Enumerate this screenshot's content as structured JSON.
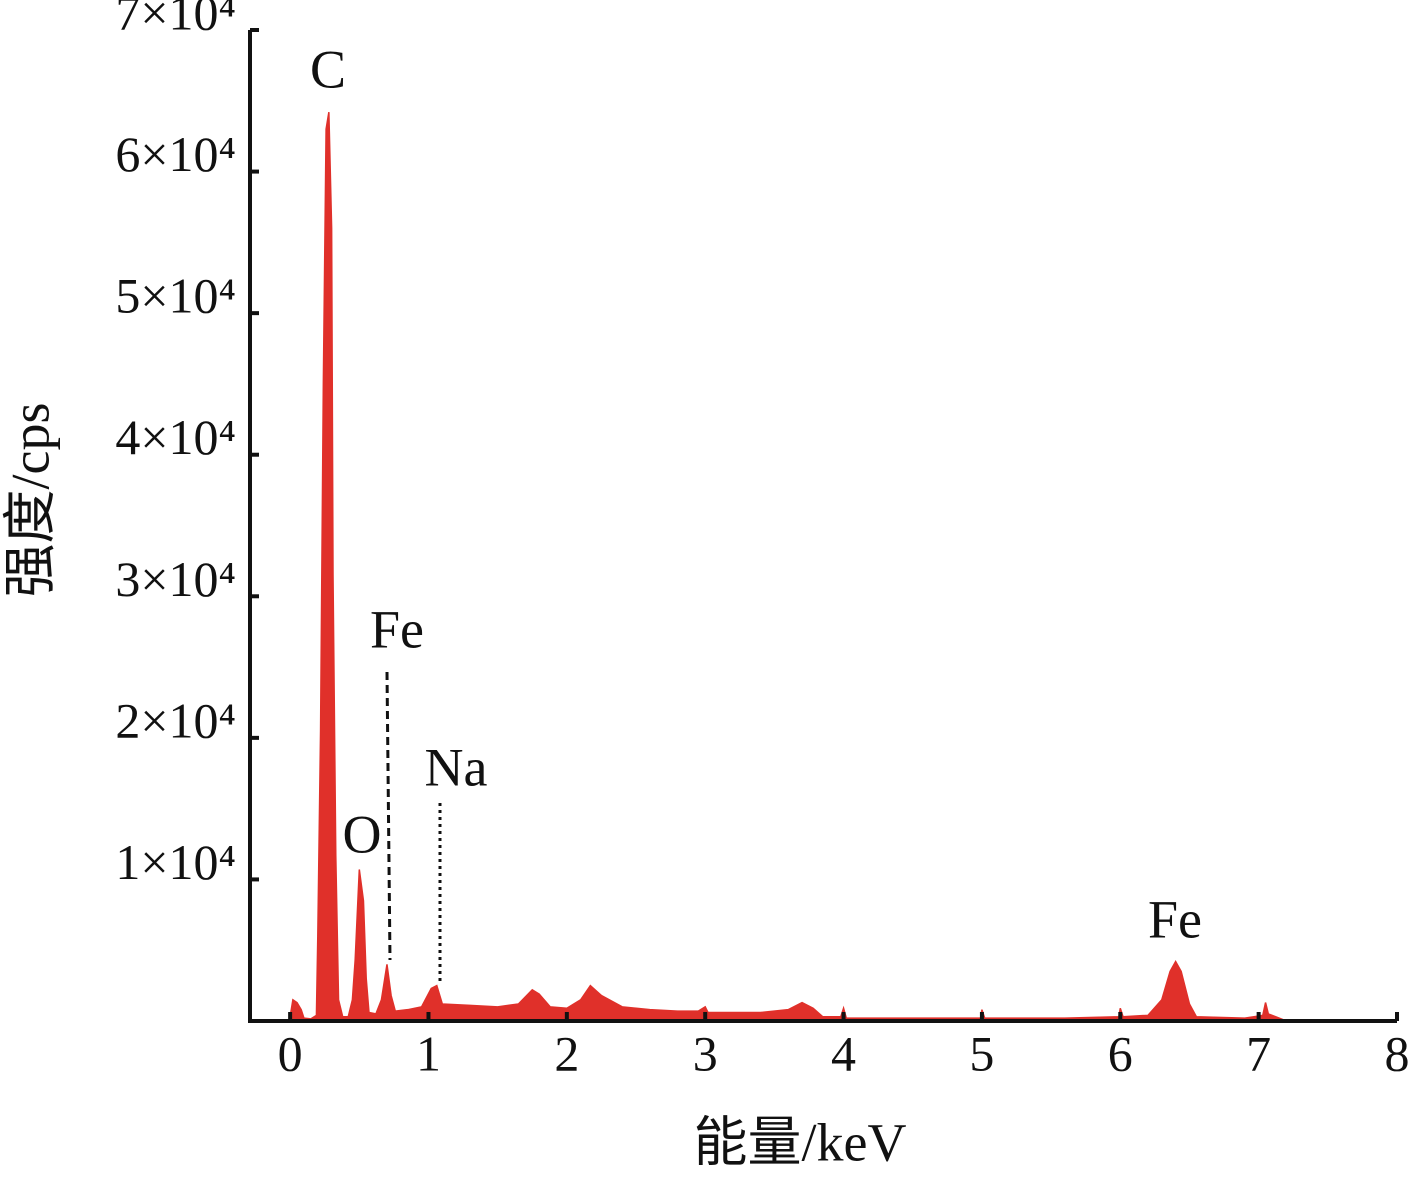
{
  "chart_data": {
    "type": "area",
    "x_label": "能量/keV",
    "y_label": "强度/cps",
    "x": [
      0,
      0.02,
      0.05,
      0.08,
      0.1,
      0.15,
      0.19,
      0.2,
      0.22,
      0.24,
      0.26,
      0.28,
      0.3,
      0.31,
      0.33,
      0.35,
      0.38,
      0.42,
      0.45,
      0.47,
      0.5,
      0.53,
      0.55,
      0.57,
      0.62,
      0.66,
      0.7,
      0.73,
      0.76,
      0.85,
      0.95,
      1.02,
      1.06,
      1.1,
      1.3,
      1.5,
      1.65,
      1.75,
      1.8,
      1.88,
      2.0,
      2.1,
      2.17,
      2.25,
      2.4,
      2.6,
      2.8,
      2.95,
      3.0,
      3.02,
      3.4,
      3.6,
      3.7,
      3.78,
      3.85,
      3.98,
      4.0,
      4.02,
      4.5,
      4.99,
      5.0,
      5.02,
      5.6,
      5.99,
      6.0,
      6.02,
      6.2,
      6.3,
      6.36,
      6.4,
      6.44,
      6.5,
      6.55,
      6.9,
      7.03,
      7.05,
      7.07,
      7.15,
      7.2
    ],
    "series": [
      {
        "color": "#e0302a",
        "values": [
          300,
          1500,
          1300,
          800,
          200,
          150,
          400,
          6000,
          20500,
          45000,
          63000,
          64200,
          56000,
          31500,
          11700,
          1500,
          300,
          300,
          1500,
          4300,
          10700,
          8500,
          3000,
          600,
          500,
          1500,
          4000,
          1800,
          700,
          800,
          1000,
          2300,
          2500,
          1200,
          1100,
          1000,
          1200,
          2200,
          1900,
          1000,
          900,
          1500,
          2500,
          1800,
          1000,
          800,
          700,
          700,
          1000,
          600,
          600,
          800,
          1300,
          900,
          300,
          300,
          900,
          200,
          200,
          200,
          800,
          200,
          200,
          300,
          900,
          300,
          400,
          1500,
          3500,
          4200,
          3500,
          1200,
          300,
          200,
          400,
          1300,
          500,
          200,
          0
        ]
      }
    ],
    "xlim": [
      -0.29,
      8
    ],
    "xticks": [
      0,
      1,
      2,
      3,
      4,
      5,
      6,
      7,
      8
    ],
    "ylim": [
      0,
      70000
    ],
    "yticks": [
      {
        "value": 10000,
        "label": "1×10⁴"
      },
      {
        "value": 20000,
        "label": "2×10⁴"
      },
      {
        "value": 30000,
        "label": "3×10⁴"
      },
      {
        "value": 40000,
        "label": "4×10⁴"
      },
      {
        "value": 50000,
        "label": "5×10⁴"
      },
      {
        "value": 60000,
        "label": "6×10⁴"
      },
      {
        "value": 70000,
        "label": "7×10⁴"
      }
    ],
    "annotations": [
      "C",
      "O",
      "Fe",
      "Na",
      "Fe"
    ]
  }
}
